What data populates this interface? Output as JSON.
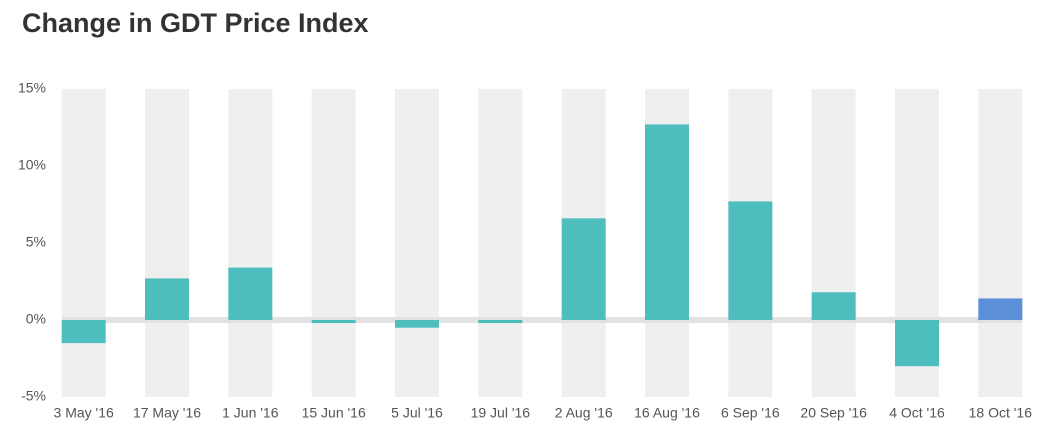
{
  "chart_data": {
    "type": "bar",
    "title": "Change in GDT Price Index",
    "categories": [
      "3 May '16",
      "17 May '16",
      "1 Jun '16",
      "15 Jun '16",
      "5 Jul '16",
      "19 Jul '16",
      "2 Aug '16",
      "16 Aug '16",
      "6 Sep '16",
      "20 Sep '16",
      "4 Oct '16",
      "18 Oct '16"
    ],
    "values": [
      -1.5,
      2.7,
      3.4,
      -0.2,
      -0.5,
      -0.2,
      6.6,
      12.7,
      7.7,
      1.8,
      -3.0,
      1.4
    ],
    "colors": [
      "#4dbdbd",
      "#4dbdbd",
      "#4dbdbd",
      "#4dbdbd",
      "#4dbdbd",
      "#4dbdbd",
      "#4dbdbd",
      "#4dbdbd",
      "#4dbdbd",
      "#4dbdbd",
      "#4dbdbd",
      "#5b8fd8"
    ],
    "ylim": [
      -5,
      15
    ],
    "yticks": [
      {
        "value": -5,
        "label": "-5%"
      },
      {
        "value": 0,
        "label": "0%"
      },
      {
        "value": 5,
        "label": "5%"
      },
      {
        "value": 10,
        "label": "10%"
      },
      {
        "value": 15,
        "label": "15%"
      }
    ]
  }
}
